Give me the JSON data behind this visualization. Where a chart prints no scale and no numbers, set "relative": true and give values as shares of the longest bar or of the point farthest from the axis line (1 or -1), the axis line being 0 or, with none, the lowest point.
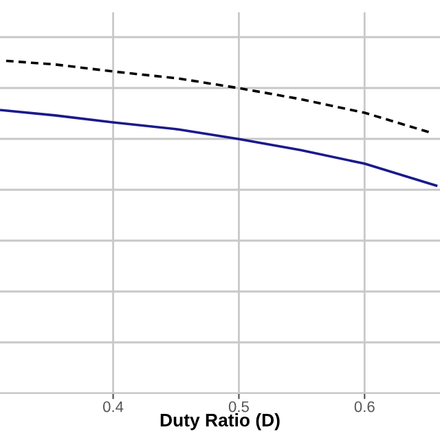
{
  "chart_data": {
    "type": "line",
    "xlabel": "Duty Ratio (D)",
    "relative": true,
    "xlim": [
      0.31,
      0.66
    ],
    "xticks": [
      0.4,
      0.5,
      0.6
    ],
    "tick_labels": "x",
    "grid": true,
    "series": [
      {
        "color": "#000000",
        "line_style": "dashed",
        "x": [
          0.311,
          0.354,
          0.4,
          0.452,
          0.5,
          0.549,
          0.6,
          0.651
        ],
        "values": [
          1.0,
          0.988,
          0.967,
          0.946,
          0.917,
          0.884,
          0.843,
          0.785
        ]
      },
      {
        "color": "#1a1a8c",
        "line_style": "solid",
        "x": [
          0.311,
          0.354,
          0.4,
          0.452,
          0.5,
          0.549,
          0.6,
          0.657
        ],
        "values": [
          0.851,
          0.835,
          0.814,
          0.793,
          0.764,
          0.731,
          0.69,
          0.624
        ]
      }
    ]
  }
}
